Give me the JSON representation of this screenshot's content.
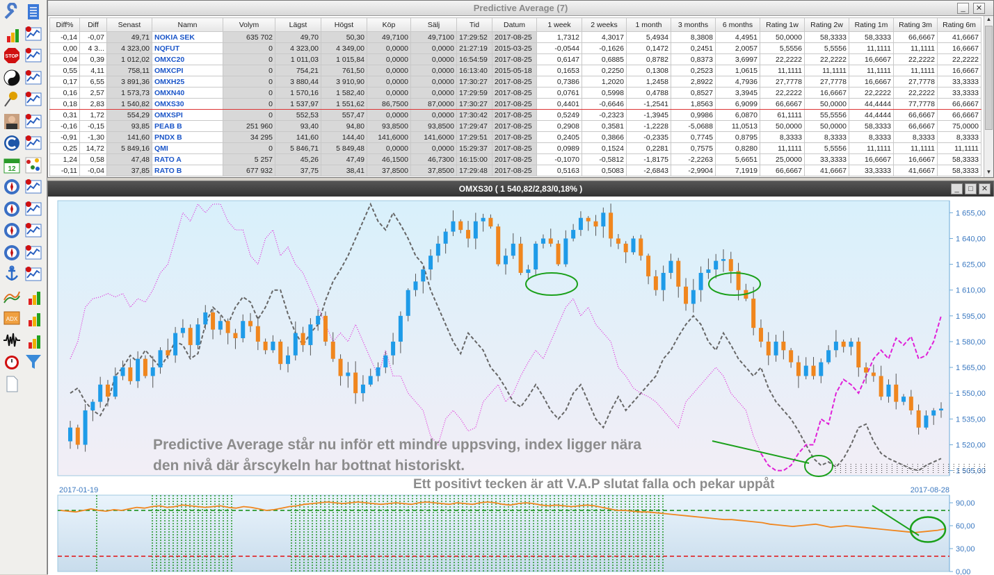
{
  "toolbar": {
    "icons": [
      "wrench-icon",
      "document-list-icon",
      "bar-chart-icon",
      "chart-v-icon",
      "stop-sign-icon",
      "chart-w-icon",
      "yin-yang-icon",
      "chart-x-icon",
      "pin-icon",
      "chart-y-icon",
      "person-photo-icon",
      "chart-b-icon",
      "c-logo-icon",
      "chart-f-icon",
      "calendar-icon",
      "scatter-icon",
      "compass-icon",
      "chart-m-icon",
      "compass-2-icon",
      "chart-r-icon",
      "compass-3-icon",
      "chart-d-icon",
      "compass-4-icon",
      "chart-s-icon",
      "anchor-icon",
      "chart-n-icon",
      "trend-line-icon",
      "bar-chart-2-icon",
      "adx-icon",
      "bar-chart-3-icon",
      "wave-icon",
      "bar-chart-4-icon",
      "alarm-clock-icon",
      "filter-icon",
      "blank-document-icon"
    ]
  },
  "pa": {
    "title": "Predictive Average (7)",
    "columns": [
      "Diff%",
      "Diff",
      "Senast",
      "Namn",
      "Volym",
      "Lägst",
      "Högst",
      "Köp",
      "Sälj",
      "Tid",
      "Datum",
      "1 week",
      "2 weeks",
      "1 month",
      "3 months",
      "6 months",
      "Rating 1w",
      "Rating 2w",
      "Rating 1m",
      "Rating 3m",
      "Rating 6m"
    ],
    "selected_row": 6,
    "rows": [
      [
        "-0,14",
        "-0,07",
        "49,71",
        "NOKIA SEK",
        "635 702",
        "49,70",
        "50,30",
        "49,7100",
        "49,7100",
        "17:29:52",
        "2017-08-25",
        "1,7312",
        "4,3017",
        "5,4934",
        "8,3808",
        "4,4951",
        "50,0000",
        "58,3333",
        "58,3333",
        "66,6667",
        "41,6667"
      ],
      [
        "0,00",
        "4 3...",
        "4 323,00",
        "NQFUT",
        "0",
        "4 323,00",
        "4 349,00",
        "0,0000",
        "0,0000",
        "21:27:19",
        "2015-03-25",
        "-0,0544",
        "-0,1626",
        "0,1472",
        "0,2451",
        "2,0057",
        "5,5556",
        "5,5556",
        "11,1111",
        "11,1111",
        "16,6667"
      ],
      [
        "0,04",
        "0,39",
        "1 012,02",
        "OMXC20",
        "0",
        "1 011,03",
        "1 015,84",
        "0,0000",
        "0,0000",
        "16:54:59",
        "2017-08-25",
        "0,6147",
        "0,6885",
        "0,8782",
        "0,8373",
        "3,6997",
        "22,2222",
        "22,2222",
        "16,6667",
        "22,2222",
        "22,2222"
      ],
      [
        "0,55",
        "4,11",
        "758,11",
        "OMXCPI",
        "0",
        "754,21",
        "761,50",
        "0,0000",
        "0,0000",
        "16:13:40",
        "2015-05-18",
        "0,1653",
        "0,2250",
        "0,1308",
        "0,2523",
        "1,0615",
        "11,1111",
        "11,1111",
        "11,1111",
        "11,1111",
        "16,6667"
      ],
      [
        "0,17",
        "6,55",
        "3 891,36",
        "OMXH25",
        "0",
        "3 880,44",
        "3 910,90",
        "0,0000",
        "0,0000",
        "17:30:27",
        "2017-08-25",
        "0,7386",
        "1,2020",
        "1,2458",
        "2,8922",
        "4,7936",
        "27,7778",
        "27,7778",
        "16,6667",
        "27,7778",
        "33,3333"
      ],
      [
        "0,16",
        "2,57",
        "1 573,73",
        "OMXN40",
        "0",
        "1 570,16",
        "1 582,40",
        "0,0000",
        "0,0000",
        "17:29:59",
        "2017-08-25",
        "0,0761",
        "0,5998",
        "0,4788",
        "0,8527",
        "3,3945",
        "22,2222",
        "16,6667",
        "22,2222",
        "22,2222",
        "33,3333"
      ],
      [
        "0,18",
        "2,83",
        "1 540,82",
        "OMXS30",
        "0",
        "1 537,97",
        "1 551,62",
        "86,7500",
        "87,0000",
        "17:30:27",
        "2017-08-25",
        "0,4401",
        "-0,6646",
        "-1,2541",
        "1,8563",
        "6,9099",
        "66,6667",
        "50,0000",
        "44,4444",
        "77,7778",
        "66,6667"
      ],
      [
        "0,31",
        "1,72",
        "554,29",
        "OMXSPI",
        "0",
        "552,53",
        "557,47",
        "0,0000",
        "0,0000",
        "17:30:42",
        "2017-08-25",
        "0,5249",
        "-0,2323",
        "-1,3945",
        "0,9986",
        "6,0870",
        "61,1111",
        "55,5556",
        "44,4444",
        "66,6667",
        "66,6667"
      ],
      [
        "-0,16",
        "-0,15",
        "93,85",
        "PEAB B",
        "251 960",
        "93,40",
        "94,80",
        "93,8500",
        "93,8500",
        "17:29:47",
        "2017-08-25",
        "0,2908",
        "0,3581",
        "-1,2228",
        "-5,0688",
        "11,0513",
        "50,0000",
        "50,0000",
        "58,3333",
        "66,6667",
        "75,0000"
      ],
      [
        "-0,91",
        "-1,30",
        "141,60",
        "PNDX B",
        "34 295",
        "141,60",
        "144,40",
        "141,6000",
        "141,6000",
        "17:29:51",
        "2017-08-25",
        "0,2405",
        "0,3866",
        "-0,2335",
        "0,7745",
        "0,8795",
        "8,3333",
        "8,3333",
        "8,3333",
        "8,3333",
        "8,3333"
      ],
      [
        "0,25",
        "14,72",
        "5 849,16",
        "QMI",
        "0",
        "5 846,71",
        "5 849,48",
        "0,0000",
        "0,0000",
        "15:29:37",
        "2017-08-25",
        "0,0989",
        "0,1524",
        "0,2281",
        "0,7575",
        "0,8280",
        "11,1111",
        "5,5556",
        "11,1111",
        "11,1111",
        "11,1111"
      ],
      [
        "1,24",
        "0,58",
        "47,48",
        "RATO A",
        "5 257",
        "45,26",
        "47,49",
        "46,1500",
        "46,7300",
        "16:15:00",
        "2017-08-25",
        "-0,1070",
        "-0,5812",
        "-1,8175",
        "-2,2263",
        "5,6651",
        "25,0000",
        "33,3333",
        "16,6667",
        "16,6667",
        "58,3333"
      ],
      [
        "-0,11",
        "-0,04",
        "37,85",
        "RATO B",
        "677 932",
        "37,75",
        "38,41",
        "37,8500",
        "37,8500",
        "17:29:48",
        "2017-08-25",
        "0,5163",
        "0,5083",
        "-2,6843",
        "-2,9904",
        "7,1919",
        "66,6667",
        "41,6667",
        "33,3333",
        "41,6667",
        "58,3333"
      ]
    ]
  },
  "chart": {
    "title": "OMXS30 ( 1 540,82/2,83/0,18% )",
    "y_ticks": [
      "1 655,00",
      "1 640,00",
      "1 625,00",
      "1 610,00",
      "1 595,00",
      "1 580,00",
      "1 565,00",
      "1 550,00",
      "1 535,00",
      "1 520,00",
      "1 505,00"
    ],
    "date_start": "2017-01-19",
    "date_end": "2017-08-28",
    "osc_ticks": [
      "90,00",
      "60,00",
      "30,00",
      "0,00"
    ],
    "annotation1_line1": "Predictive Average står nu inför ett mindre uppsving, index ligger nära",
    "annotation1_line2": "den nivå där årscykeln har bottnat historiskt.",
    "annotation2": "Ett positivt tecken är att V.A.P slutat falla och pekar uppåt",
    "colors": {
      "up": "#1e9be8",
      "down": "#f0861e",
      "gray_line": "#666666",
      "magenta": "#e020d8",
      "osc": "#f0861e",
      "green": "#0a8a0a",
      "red": "#e01010"
    }
  },
  "chart_data": {
    "type": "candlestick",
    "title": "OMXS30 ( 1 540,82/2,83/0,18% )",
    "ylim": [
      1502,
      1662
    ],
    "x_range": [
      "2017-01-19",
      "2017-08-28"
    ],
    "close": [
      1530,
      1520,
      1540,
      1545,
      1555,
      1548,
      1560,
      1565,
      1557,
      1570,
      1560,
      1565,
      1575,
      1572,
      1585,
      1588,
      1578,
      1590,
      1597,
      1587,
      1592,
      1585,
      1582,
      1592,
      1589,
      1580,
      1575,
      1580,
      1567,
      1572,
      1585,
      1578,
      1590,
      1595,
      1580,
      1570,
      1560,
      1562,
      1550,
      1555,
      1560,
      1565,
      1572,
      1580,
      1595,
      1610,
      1615,
      1622,
      1630,
      1637,
      1644,
      1650,
      1645,
      1640,
      1650,
      1652,
      1647,
      1625,
      1630,
      1637,
      1620,
      1622,
      1637,
      1640,
      1637,
      1625,
      1640,
      1645,
      1652,
      1650,
      1647,
      1655,
      1640,
      1637,
      1632,
      1640,
      1630,
      1618,
      1610,
      1620,
      1627,
      1612,
      1602,
      1610,
      1620,
      1622,
      1627,
      1628,
      1621,
      1610,
      1605,
      1588,
      1580,
      1572,
      1580,
      1575,
      1568,
      1560,
      1566,
      1560,
      1568,
      1575,
      1580,
      1577,
      1580,
      1565,
      1562,
      1560,
      1548,
      1555,
      1545,
      1548,
      1540,
      1530,
      1537,
      1540,
      1541
    ],
    "predictive_average": "gray dashed",
    "vap": "magenta dotted",
    "oscillator": {
      "ylim": [
        0,
        100
      ],
      "upper_band": 80,
      "lower_band": 20,
      "last": 55
    }
  }
}
